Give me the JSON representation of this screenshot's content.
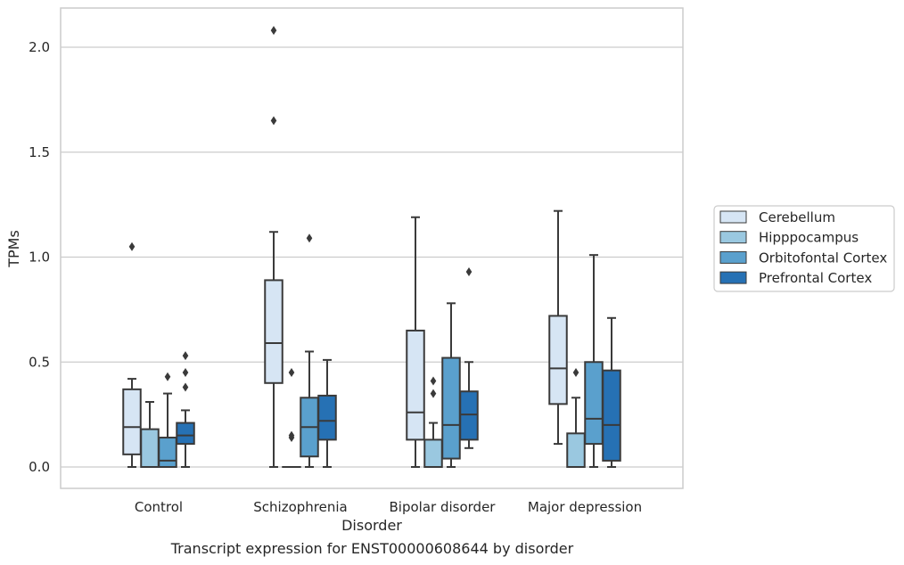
{
  "caption": "Transcript expression for ENST00000608644 by disorder",
  "chart_data": {
    "type": "box",
    "xlabel": "Disorder",
    "ylabel": "TPMs",
    "ylim": [
      -0.1,
      2.2
    ],
    "yticks": [
      0.0,
      0.5,
      1.0,
      1.5,
      2.0
    ],
    "ytick_labels": [
      "0.0",
      "0.5",
      "1.0",
      "1.5",
      "2.0"
    ],
    "grid": "horizontal",
    "legend_position": "right",
    "categories": [
      "Control",
      "Schizophrenia",
      "Bipolar disorder",
      "Major depression"
    ],
    "series": [
      {
        "name": "Cerebellum",
        "color": "#d6e5f4",
        "boxes": [
          {
            "whislo": 0.0,
            "q1": 0.06,
            "med": 0.19,
            "q3": 0.37,
            "whishi": 0.42,
            "fliers": [
              1.05
            ]
          },
          {
            "whislo": 0.0,
            "q1": 0.4,
            "med": 0.59,
            "q3": 0.89,
            "whishi": 1.12,
            "fliers": [
              1.65,
              2.08
            ]
          },
          {
            "whislo": 0.0,
            "q1": 0.13,
            "med": 0.26,
            "q3": 0.65,
            "whishi": 1.19,
            "fliers": []
          },
          {
            "whislo": 0.11,
            "q1": 0.3,
            "med": 0.47,
            "q3": 0.72,
            "whishi": 1.22,
            "fliers": []
          }
        ]
      },
      {
        "name": "Hipppocampus",
        "color": "#9ac8e0",
        "boxes": [
          {
            "whislo": 0.0,
            "q1": 0.0,
            "med": 0.0,
            "q3": 0.18,
            "whishi": 0.31,
            "fliers": []
          },
          {
            "whislo": 0.0,
            "q1": 0.0,
            "med": 0.0,
            "q3": 0.0,
            "whishi": 0.0,
            "fliers": [
              0.14,
              0.15,
              0.45
            ]
          },
          {
            "whislo": 0.0,
            "q1": 0.0,
            "med": 0.0,
            "q3": 0.13,
            "whishi": 0.21,
            "fliers": [
              0.35,
              0.41
            ]
          },
          {
            "whislo": 0.0,
            "q1": 0.0,
            "med": 0.0,
            "q3": 0.16,
            "whishi": 0.33,
            "fliers": [
              0.45
            ]
          }
        ]
      },
      {
        "name": "Orbitofontal Cortex",
        "color": "#5aa0cd",
        "boxes": [
          {
            "whislo": 0.0,
            "q1": 0.0,
            "med": 0.03,
            "q3": 0.14,
            "whishi": 0.35,
            "fliers": [
              0.43
            ]
          },
          {
            "whislo": 0.0,
            "q1": 0.05,
            "med": 0.19,
            "q3": 0.33,
            "whishi": 0.55,
            "fliers": [
              1.09
            ]
          },
          {
            "whislo": 0.0,
            "q1": 0.04,
            "med": 0.2,
            "q3": 0.52,
            "whishi": 0.78,
            "fliers": []
          },
          {
            "whislo": 0.0,
            "q1": 0.11,
            "med": 0.23,
            "q3": 0.5,
            "whishi": 1.01,
            "fliers": []
          }
        ]
      },
      {
        "name": "Prefrontal Cortex",
        "color": "#2671b4",
        "boxes": [
          {
            "whislo": 0.0,
            "q1": 0.11,
            "med": 0.15,
            "q3": 0.21,
            "whishi": 0.27,
            "fliers": [
              0.38,
              0.45,
              0.53
            ]
          },
          {
            "whislo": 0.0,
            "q1": 0.13,
            "med": 0.22,
            "q3": 0.34,
            "whishi": 0.51,
            "fliers": []
          },
          {
            "whislo": 0.09,
            "q1": 0.13,
            "med": 0.25,
            "q3": 0.36,
            "whishi": 0.5,
            "fliers": [
              0.93
            ]
          },
          {
            "whislo": 0.0,
            "q1": 0.03,
            "med": 0.2,
            "q3": 0.46,
            "whishi": 0.71,
            "fliers": []
          }
        ]
      }
    ]
  }
}
